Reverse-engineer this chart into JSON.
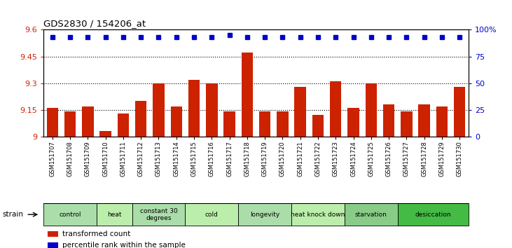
{
  "title": "GDS2830 / 154206_at",
  "samples": [
    "GSM151707",
    "GSM151708",
    "GSM151709",
    "GSM151710",
    "GSM151711",
    "GSM151712",
    "GSM151713",
    "GSM151714",
    "GSM151715",
    "GSM151716",
    "GSM151717",
    "GSM151718",
    "GSM151719",
    "GSM151720",
    "GSM151721",
    "GSM151722",
    "GSM151723",
    "GSM151724",
    "GSM151725",
    "GSM151726",
    "GSM151727",
    "GSM151728",
    "GSM151729",
    "GSM151730"
  ],
  "bar_values": [
    9.16,
    9.14,
    9.17,
    9.03,
    9.13,
    9.2,
    9.3,
    9.17,
    9.32,
    9.3,
    9.14,
    9.47,
    9.14,
    9.14,
    9.28,
    9.12,
    9.31,
    9.16,
    9.3,
    9.18,
    9.14,
    9.18,
    9.17,
    9.28
  ],
  "percentile_values": [
    93,
    93,
    93,
    93,
    93,
    93,
    93,
    93,
    93,
    93,
    95,
    93,
    93,
    93,
    93,
    93,
    93,
    93,
    93,
    93,
    93,
    93,
    93,
    93
  ],
  "groups": [
    {
      "label": "control",
      "start": 0,
      "end": 3,
      "color": "#aaddaa"
    },
    {
      "label": "heat",
      "start": 3,
      "end": 5,
      "color": "#bbeeaa"
    },
    {
      "label": "constant 30\ndegrees",
      "start": 5,
      "end": 8,
      "color": "#aaddaa"
    },
    {
      "label": "cold",
      "start": 8,
      "end": 11,
      "color": "#bbeeaa"
    },
    {
      "label": "longevity",
      "start": 11,
      "end": 14,
      "color": "#aaddaa"
    },
    {
      "label": "heat knock down",
      "start": 14,
      "end": 17,
      "color": "#bbeeaa"
    },
    {
      "label": "starvation",
      "start": 17,
      "end": 20,
      "color": "#88cc88"
    },
    {
      "label": "desiccation",
      "start": 20,
      "end": 24,
      "color": "#44bb44"
    }
  ],
  "ylim": [
    9.0,
    9.6
  ],
  "yticks": [
    9.0,
    9.15,
    9.3,
    9.45,
    9.6
  ],
  "ytick_labels": [
    "9",
    "9.15",
    "9.3",
    "9.45",
    "9.6"
  ],
  "y2ticks": [
    0,
    25,
    50,
    75,
    100
  ],
  "y2tick_labels": [
    "0",
    "25",
    "50",
    "75",
    "100%"
  ],
  "hlines": [
    9.15,
    9.3,
    9.45
  ],
  "bar_color": "#cc2200",
  "dot_color": "#0000cc",
  "bg_color": "#ffffff",
  "left_tick_color": "#cc2200",
  "right_tick_color": "#0000cc",
  "strain_label": "strain",
  "legend_items": [
    {
      "color": "#cc2200",
      "label": "transformed count"
    },
    {
      "color": "#0000cc",
      "label": "percentile rank within the sample"
    }
  ]
}
